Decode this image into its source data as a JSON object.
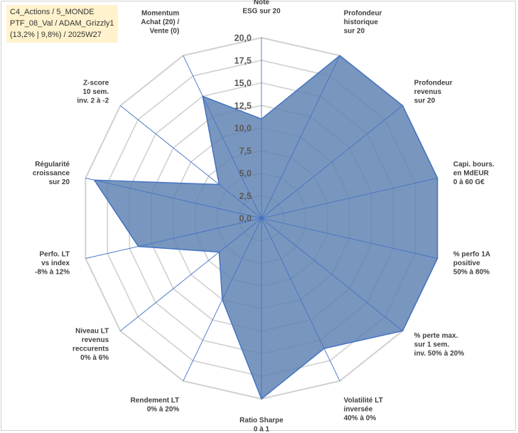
{
  "title_lines": [
    "C4_Actions / 5_MONDE",
    "PTF_08_Val / ADAM_Grizzly1",
    "(13,2% | 9,8%) / 2025W27"
  ],
  "colors": {
    "fill": "#5b80b0",
    "stroke": "#4472c4",
    "grid": "#d0d0d0",
    "spoke": "#4472c4",
    "label": "#404040",
    "tick": "#595959",
    "title_bg": "#fff2cc"
  },
  "chart_data": {
    "type": "radar",
    "title": "",
    "rmin": 0,
    "rmax": 20,
    "ticks": [
      "0,0",
      "2,5",
      "5,0",
      "7,5",
      "10,0",
      "12,5",
      "15,0",
      "17,5",
      "20,0"
    ],
    "grid": true,
    "legend": "none",
    "axes": [
      [
        "Note",
        "ESG sur 20"
      ],
      [
        "Profondeur",
        "historique",
        "sur 20"
      ],
      [
        "Profondeur",
        "revenus",
        "sur 20"
      ],
      [
        "Capi. bours.",
        "en MdEUR",
        "0 à 60 G€"
      ],
      [
        "% perfo 1A",
        "positive",
        "50% à 80%"
      ],
      [
        "% perte max.",
        "sur 1 sem.",
        "inv. 50% à 20%"
      ],
      [
        "Volatilité LT",
        "inversée",
        "40% à 0%"
      ],
      [
        "Ratio Sharpe",
        "0 à 1"
      ],
      [
        "Rendement LT",
        "0% à 20%"
      ],
      [
        "Niveau LT",
        "revenus",
        "reccurents",
        "0% à 6%"
      ],
      [
        "Perfo. LT",
        "vs index",
        "-8% à 12%"
      ],
      [
        "Régularité",
        "croissance",
        "sur 20"
      ],
      [
        "Z-score",
        "10 sem.",
        "inv. 2 à -2"
      ],
      [
        "Momentum",
        "Achat (20) /",
        "Vente (0)"
      ]
    ],
    "series": [
      {
        "values": [
          11,
          20,
          20,
          20,
          20,
          20,
          16,
          20,
          10,
          6,
          14,
          19,
          6,
          15
        ]
      }
    ]
  }
}
